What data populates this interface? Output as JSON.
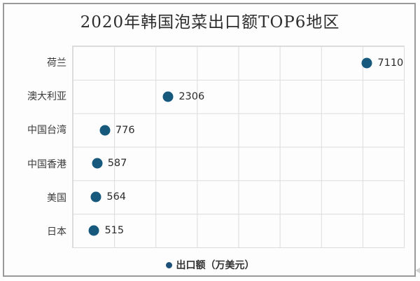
{
  "chart_data": {
    "type": "scatter",
    "orientation": "horizontal-category",
    "title": "2020年韩国泡菜出口额TOP6地区",
    "categories": [
      "荷兰",
      "澳大利亚",
      "中国台湾",
      "中国香港",
      "美国",
      "日本"
    ],
    "series": [
      {
        "name": "出口额（万美元）",
        "values": [
          7110,
          2306,
          776,
          587,
          564,
          515
        ]
      }
    ],
    "value_labels_shown": true,
    "xlim": [
      0,
      8000
    ],
    "x_gridline_step": 1000,
    "grid": true,
    "x_tick_labels_shown": false,
    "legend": {
      "position": "bottom",
      "label": "出口额（万美元）"
    },
    "colors": {
      "point": "#16597c",
      "legend_marker": "#1d5078",
      "gridline": "#dcdcdc",
      "title_text": "#2d2d2d",
      "category_text": "#3a3a3a",
      "value_text": "#2b2b2b",
      "card_border": "#9a9a9a",
      "card_background": "#fdfdfd"
    }
  }
}
